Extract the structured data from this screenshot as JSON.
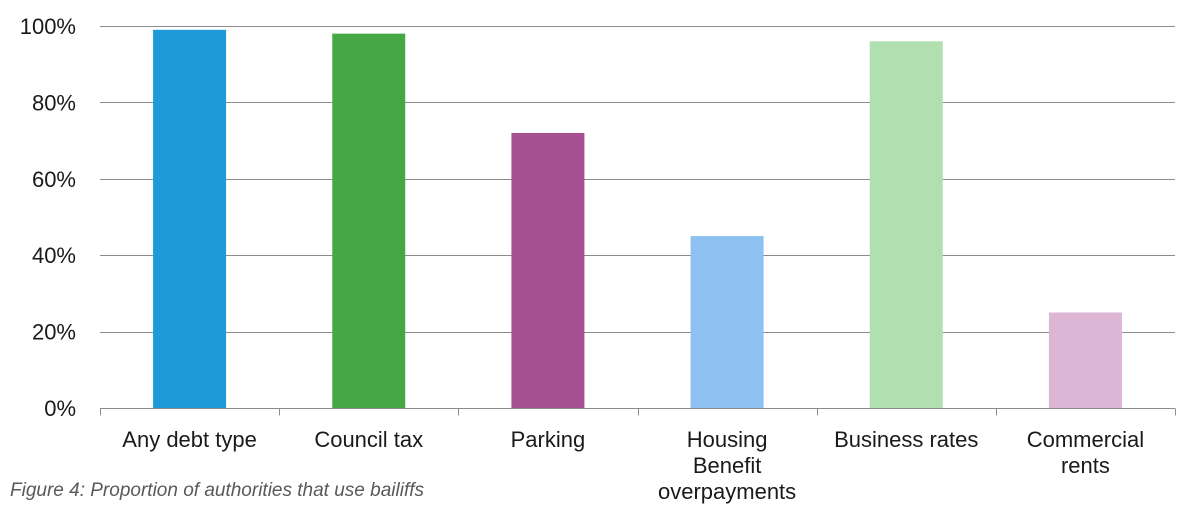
{
  "caption": "Figure 4: Proportion of authorities that use bailiffs",
  "chart_data": {
    "type": "bar",
    "title": "",
    "xlabel": "",
    "ylabel": "",
    "categories": [
      "Any debt type",
      "Council tax",
      "Parking",
      "Housing Benefit overpayments",
      "Business rates",
      "Commercial rents"
    ],
    "category_lines": [
      [
        "Any debt type"
      ],
      [
        "Council tax"
      ],
      [
        "Parking"
      ],
      [
        "Housing",
        "Benefit",
        "overpayments"
      ],
      [
        "Business rates"
      ],
      [
        "Commercial",
        "rents"
      ]
    ],
    "values": [
      99,
      98,
      72,
      45,
      96,
      25
    ],
    "colors": [
      "#1f9ad9",
      "#46a845",
      "#a64f91",
      "#8cc1f2",
      "#b1e0b0",
      "#ddb6d6"
    ],
    "ylim": [
      0,
      100
    ],
    "yticks": [
      0,
      20,
      40,
      60,
      80,
      100
    ],
    "ytick_labels": [
      "0%",
      "20%",
      "40%",
      "60%",
      "80%",
      "100%"
    ],
    "grid": true,
    "legend": "none"
  }
}
